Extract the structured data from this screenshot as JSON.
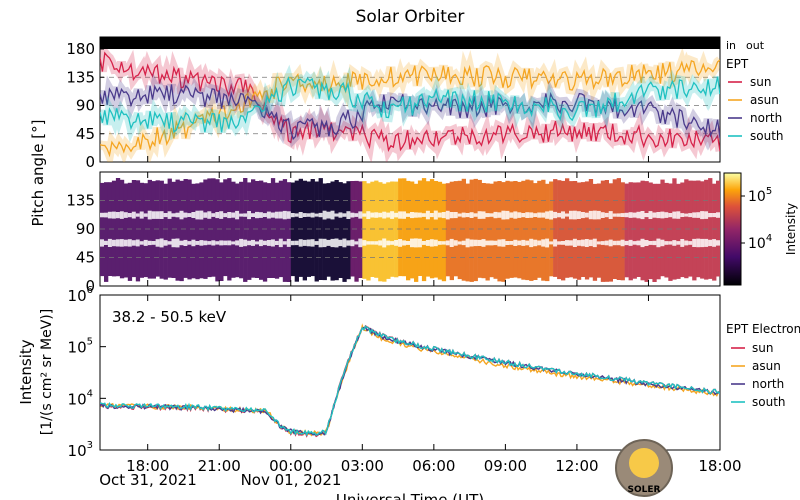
{
  "title": "Solar Orbiter",
  "colors": {
    "sun": "#d6234a",
    "asun": "#f5a623",
    "north": "#4b3b8c",
    "south": "#20c1c1",
    "in": "#e0143c",
    "out": "#1010e0"
  },
  "legend_top": {
    "in_label": "in",
    "out_label": "out",
    "header": "EPT",
    "entries": [
      "sun",
      "asun",
      "north",
      "south"
    ]
  },
  "legend_bottom": {
    "header": "EPT Electrons",
    "entries": [
      "sun",
      "asun",
      "north",
      "south"
    ]
  },
  "shared_ylabel": "Pitch angle [°]",
  "energy_label": "38.2 - 50.5 keV",
  "colorbar": {
    "label": "Intensity",
    "ticks": [
      {
        "base": "10",
        "exp": "5"
      },
      {
        "base": "10",
        "exp": "4"
      }
    ]
  },
  "xaxis": {
    "title": "Universal Time (UT)",
    "ticks": [
      "18:00",
      "21:00",
      "00:00",
      "03:00",
      "06:00",
      "09:00",
      "12:00",
      "15:00",
      "18:00"
    ],
    "date_labels": [
      "Oct 31, 2021",
      "Nov 01, 2021"
    ]
  },
  "logo_text": "SOLER",
  "chart_data": [
    {
      "type": "line",
      "panel": "pitch-angle",
      "ylim": [
        0,
        180
      ],
      "yticks": [
        "0",
        "45",
        "90",
        "135",
        "180"
      ],
      "grid": true,
      "x": [
        "2021-10-31 16:00",
        "2021-10-31 19:00",
        "2021-10-31 22:00",
        "2021-11-01 00:00",
        "2021-11-01 02:00",
        "2021-11-01 04:00",
        "2021-11-01 06:00",
        "2021-11-01 09:00",
        "2021-11-01 12:00",
        "2021-11-01 15:00",
        "2021-11-01 18:00"
      ],
      "series": [
        {
          "name": "sun",
          "values": [
            160,
            135,
            120,
            45,
            50,
            35,
            40,
            45,
            50,
            40,
            30
          ]
        },
        {
          "name": "asun",
          "values": [
            20,
            45,
            90,
            130,
            125,
            135,
            140,
            135,
            130,
            140,
            150
          ]
        },
        {
          "name": "north",
          "values": [
            100,
            110,
            95,
            50,
            60,
            95,
            85,
            90,
            95,
            80,
            55
          ]
        },
        {
          "name": "south",
          "values": [
            70,
            65,
            60,
            120,
            115,
            80,
            100,
            95,
            80,
            110,
            125
          ]
        }
      ]
    },
    {
      "type": "heatmap",
      "panel": "pitch-angle-intensity",
      "ylim": [
        0,
        180
      ],
      "yticks": [
        "0",
        "45",
        "90",
        "135"
      ],
      "colorbar_range": [
        3000,
        200000
      ]
    },
    {
      "type": "line",
      "panel": "intensity",
      "ylabel": "Intensity",
      "ylabel_units": "[1/(s cm² sr MeV)]",
      "yscale": "log",
      "ylim": [
        1000,
        1000000
      ],
      "yticks": [
        {
          "base": "10",
          "exp": "3"
        },
        {
          "base": "10",
          "exp": "4"
        },
        {
          "base": "10",
          "exp": "5"
        },
        {
          "base": "10",
          "exp": "6"
        }
      ],
      "x": [
        "2021-10-31 16:00",
        "2021-10-31 20:00",
        "2021-10-31 23:00",
        "2021-10-31 23:30",
        "2021-11-01 00:00",
        "2021-11-01 01:00",
        "2021-11-01 01:30",
        "2021-11-01 02:00",
        "2021-11-01 02:30",
        "2021-11-01 03:00",
        "2021-11-01 04:00",
        "2021-11-01 06:00",
        "2021-11-01 09:00",
        "2021-11-01 12:00",
        "2021-11-01 15:00",
        "2021-11-01 18:00"
      ],
      "series": [
        {
          "name": "sun",
          "values": [
            7000,
            6500,
            5500,
            3000,
            2200,
            2000,
            2300,
            15000,
            70000,
            250000,
            150000,
            90000,
            50000,
            30000,
            20000,
            13000
          ]
        },
        {
          "name": "asun",
          "values": [
            7200,
            6700,
            5600,
            3100,
            2200,
            2100,
            2200,
            13000,
            60000,
            230000,
            130000,
            80000,
            42000,
            26000,
            18000,
            12000
          ]
        },
        {
          "name": "north",
          "values": [
            7100,
            6600,
            5500,
            3000,
            2300,
            2000,
            2250,
            14000,
            65000,
            240000,
            145000,
            88000,
            48000,
            29000,
            19000,
            12500
          ]
        },
        {
          "name": "south",
          "values": [
            7300,
            6800,
            5700,
            3100,
            2300,
            2100,
            2300,
            14500,
            68000,
            245000,
            148000,
            90000,
            50000,
            30000,
            20000,
            13000
          ]
        }
      ]
    }
  ]
}
